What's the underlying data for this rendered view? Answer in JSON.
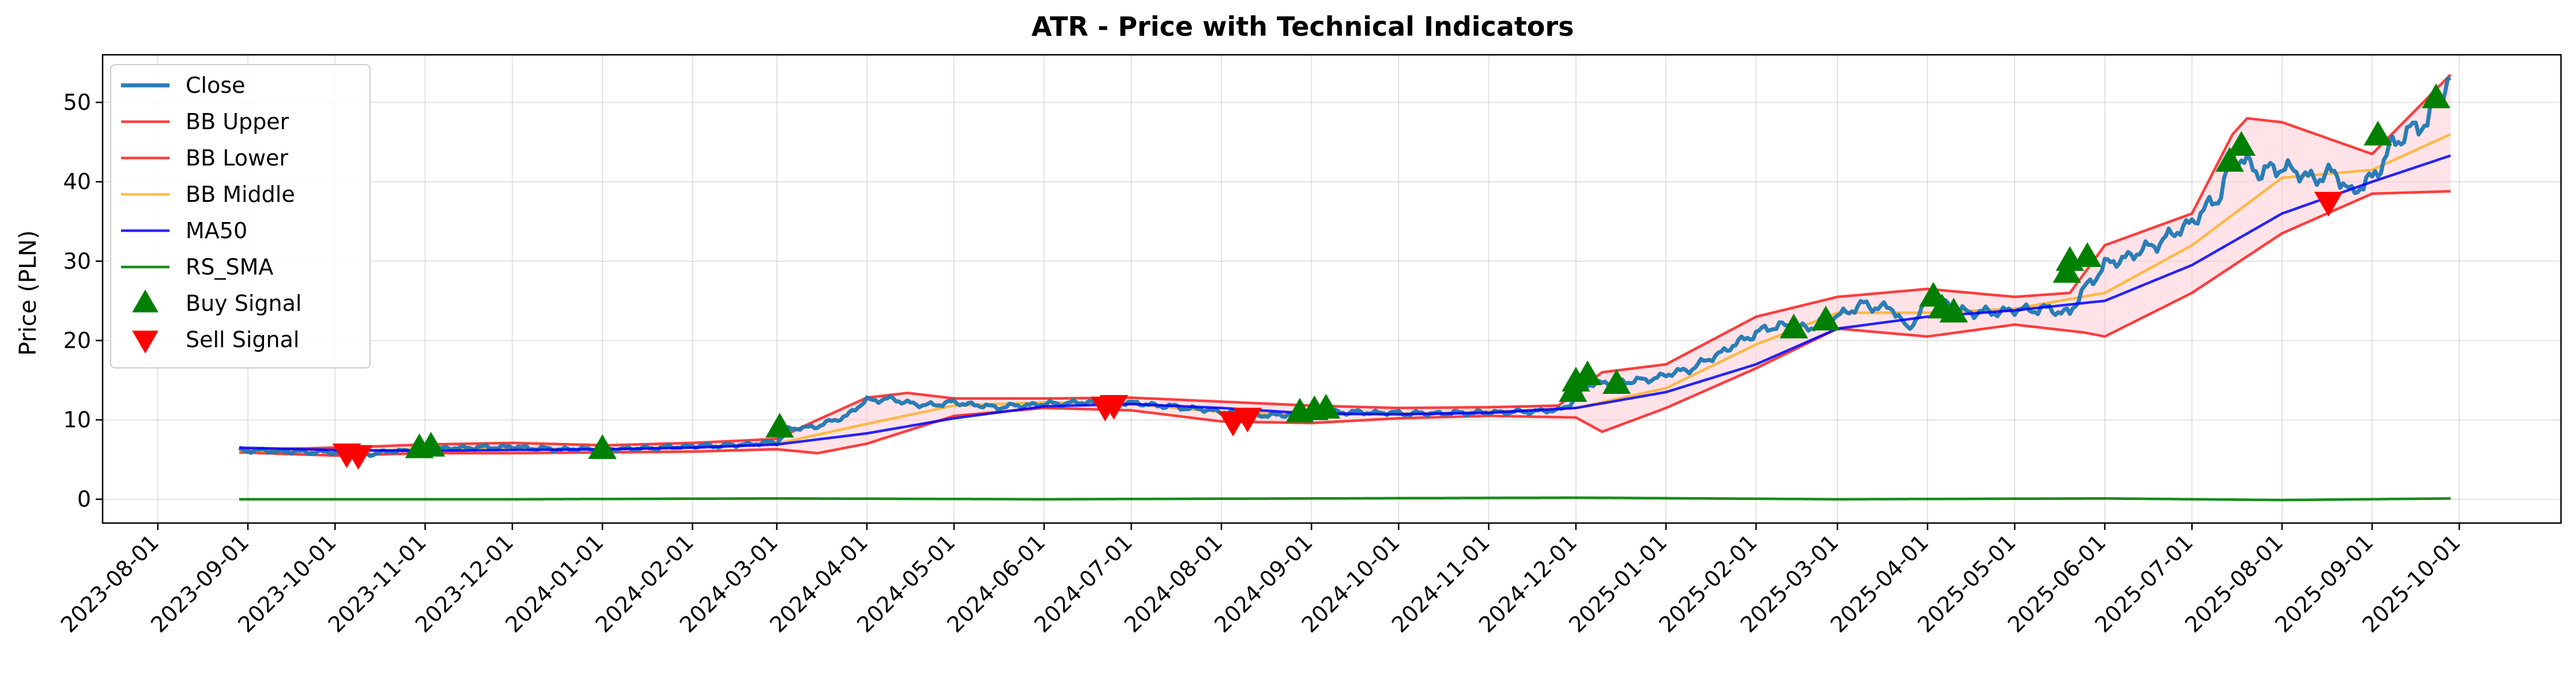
{
  "chart_data": {
    "type": "line",
    "title": "ATR - Price with Technical Indicators",
    "xlabel": "",
    "ylabel": "Price (PLN)",
    "ylim": [
      -3,
      56
    ],
    "xlim": [
      "2023-07-13",
      "2025-11-05"
    ],
    "grid": true,
    "legend_position": "top-left",
    "x_ticks": [
      "2023-08-01",
      "2023-09-01",
      "2023-10-01",
      "2023-11-01",
      "2023-12-01",
      "2024-01-01",
      "2024-02-01",
      "2024-03-01",
      "2024-04-01",
      "2024-05-01",
      "2024-06-01",
      "2024-07-01",
      "2024-08-01",
      "2024-09-01",
      "2024-10-01",
      "2024-11-01",
      "2024-12-01",
      "2025-01-01",
      "2025-02-01",
      "2025-03-01",
      "2025-04-01",
      "2025-05-01",
      "2025-06-01",
      "2025-07-01",
      "2025-08-01",
      "2025-09-01",
      "2025-10-01"
    ],
    "y_ticks": [
      0,
      10,
      20,
      30,
      40,
      50
    ],
    "colors": {
      "Close": "#1f77b4",
      "BB Upper": "#ff0000",
      "BB Lower": "#ff0000",
      "BB Middle": "#ffa500",
      "MA50": "#0000ff",
      "RS_SMA": "#008000",
      "Buy Signal": "#008000",
      "Sell Signal": "#ff0000",
      "band_fill": "#ffc0cb"
    },
    "series": [
      {
        "name": "Close",
        "style": "line",
        "points": [
          [
            "2023-08-29",
            6.2
          ],
          [
            "2023-09-15",
            6.0
          ],
          [
            "2023-10-01",
            5.9
          ],
          [
            "2023-10-10",
            5.6
          ],
          [
            "2023-10-20",
            6.0
          ],
          [
            "2023-11-01",
            6.3
          ],
          [
            "2023-11-15",
            6.5
          ],
          [
            "2023-12-01",
            6.6
          ],
          [
            "2023-12-15",
            6.3
          ],
          [
            "2024-01-02",
            6.3
          ],
          [
            "2024-01-15",
            6.4
          ],
          [
            "2024-02-01",
            6.7
          ],
          [
            "2024-02-15",
            6.8
          ],
          [
            "2024-03-01",
            7.2
          ],
          [
            "2024-03-05",
            8.8
          ],
          [
            "2024-03-15",
            9.2
          ],
          [
            "2024-03-25",
            10.5
          ],
          [
            "2024-04-01",
            12.5
          ],
          [
            "2024-04-10",
            12.6
          ],
          [
            "2024-04-20",
            11.8
          ],
          [
            "2024-05-01",
            12.2
          ],
          [
            "2024-05-15",
            11.6
          ],
          [
            "2024-06-01",
            12.0
          ],
          [
            "2024-06-15",
            12.2
          ],
          [
            "2024-06-26",
            12.3
          ],
          [
            "2024-07-05",
            12.0
          ],
          [
            "2024-07-20",
            11.5
          ],
          [
            "2024-08-05",
            10.9
          ],
          [
            "2024-08-15",
            10.5
          ],
          [
            "2024-08-28",
            10.8
          ],
          [
            "2024-09-10",
            11.0
          ],
          [
            "2024-09-25",
            10.9
          ],
          [
            "2024-10-10",
            10.8
          ],
          [
            "2024-10-25",
            10.9
          ],
          [
            "2024-11-10",
            11.0
          ],
          [
            "2024-11-25",
            11.2
          ],
          [
            "2024-12-01",
            12.5
          ],
          [
            "2024-12-05",
            14.5
          ],
          [
            "2024-12-15",
            14.8
          ],
          [
            "2024-12-25",
            15.0
          ],
          [
            "2025-01-10",
            16.5
          ],
          [
            "2025-01-20",
            18.5
          ],
          [
            "2025-02-01",
            21.0
          ],
          [
            "2025-02-10",
            22.0
          ],
          [
            "2025-02-18",
            21.5
          ],
          [
            "2025-02-28",
            23.0
          ],
          [
            "2025-03-10",
            24.5
          ],
          [
            "2025-03-20",
            24.0
          ],
          [
            "2025-03-25",
            21.5
          ],
          [
            "2025-04-01",
            24.5
          ],
          [
            "2025-04-03",
            25.8
          ],
          [
            "2025-04-10",
            23.8
          ],
          [
            "2025-04-20",
            23.5
          ],
          [
            "2025-05-01",
            23.8
          ],
          [
            "2025-05-10",
            24.0
          ],
          [
            "2025-05-20",
            23.5
          ],
          [
            "2025-05-25",
            26.5
          ],
          [
            "2025-06-01",
            29.5
          ],
          [
            "2025-06-05",
            30.0
          ],
          [
            "2025-06-15",
            31.5
          ],
          [
            "2025-06-25",
            33.5
          ],
          [
            "2025-07-01",
            35.0
          ],
          [
            "2025-07-10",
            38.0
          ],
          [
            "2025-07-15",
            43.0
          ],
          [
            "2025-07-20",
            42.5
          ],
          [
            "2025-07-25",
            41.0
          ],
          [
            "2025-08-01",
            42.0
          ],
          [
            "2025-08-10",
            40.5
          ],
          [
            "2025-08-20",
            41.0
          ],
          [
            "2025-08-25",
            38.5
          ],
          [
            "2025-09-01",
            40.5
          ],
          [
            "2025-09-08",
            44.5
          ],
          [
            "2025-09-15",
            47.0
          ],
          [
            "2025-09-20",
            47.0
          ],
          [
            "2025-09-23",
            50.5
          ],
          [
            "2025-09-28",
            52.5
          ]
        ]
      },
      {
        "name": "BB Upper",
        "style": "line",
        "points": [
          [
            "2023-08-29",
            6.3
          ],
          [
            "2023-09-20",
            6.4
          ],
          [
            "2023-10-10",
            6.6
          ],
          [
            "2023-11-01",
            6.9
          ],
          [
            "2023-12-01",
            7.1
          ],
          [
            "2024-01-02",
            6.8
          ],
          [
            "2024-02-01",
            7.1
          ],
          [
            "2024-03-01",
            7.6
          ],
          [
            "2024-03-15",
            10.0
          ],
          [
            "2024-04-01",
            12.8
          ],
          [
            "2024-04-15",
            13.4
          ],
          [
            "2024-05-01",
            12.7
          ],
          [
            "2024-06-01",
            12.7
          ],
          [
            "2024-07-01",
            12.8
          ],
          [
            "2024-08-01",
            12.3
          ],
          [
            "2024-09-01",
            11.8
          ],
          [
            "2024-10-01",
            11.5
          ],
          [
            "2024-11-01",
            11.6
          ],
          [
            "2024-11-25",
            11.8
          ],
          [
            "2024-12-10",
            16.0
          ],
          [
            "2025-01-01",
            17.0
          ],
          [
            "2025-02-01",
            23.0
          ],
          [
            "2025-03-01",
            25.5
          ],
          [
            "2025-04-01",
            26.5
          ],
          [
            "2025-05-01",
            25.5
          ],
          [
            "2025-05-20",
            26.0
          ],
          [
            "2025-06-01",
            32.0
          ],
          [
            "2025-07-01",
            36.0
          ],
          [
            "2025-07-15",
            46.0
          ],
          [
            "2025-07-20",
            48.0
          ],
          [
            "2025-08-01",
            47.5
          ],
          [
            "2025-09-01",
            43.5
          ],
          [
            "2025-09-28",
            53.5
          ]
        ]
      },
      {
        "name": "BB Middle",
        "style": "line",
        "points": [
          [
            "2023-08-29",
            6.1
          ],
          [
            "2023-10-01",
            6.0
          ],
          [
            "2023-11-01",
            6.3
          ],
          [
            "2023-12-01",
            6.4
          ],
          [
            "2024-01-02",
            6.3
          ],
          [
            "2024-02-01",
            6.6
          ],
          [
            "2024-03-01",
            7.0
          ],
          [
            "2024-04-01",
            9.5
          ],
          [
            "2024-05-01",
            11.8
          ],
          [
            "2024-06-01",
            12.2
          ],
          [
            "2024-07-01",
            12.0
          ],
          [
            "2024-08-01",
            11.0
          ],
          [
            "2024-09-01",
            10.6
          ],
          [
            "2024-10-01",
            10.8
          ],
          [
            "2024-11-01",
            11.0
          ],
          [
            "2024-12-01",
            11.5
          ],
          [
            "2025-01-01",
            14.0
          ],
          [
            "2025-02-01",
            19.5
          ],
          [
            "2025-03-01",
            23.5
          ],
          [
            "2025-04-01",
            23.5
          ],
          [
            "2025-05-01",
            24.0
          ],
          [
            "2025-06-01",
            26.0
          ],
          [
            "2025-07-01",
            32.0
          ],
          [
            "2025-08-01",
            40.5
          ],
          [
            "2025-09-01",
            41.5
          ],
          [
            "2025-09-28",
            46.0
          ]
        ]
      },
      {
        "name": "BB Lower",
        "style": "line",
        "points": [
          [
            "2023-08-29",
            5.9
          ],
          [
            "2023-10-01",
            5.5
          ],
          [
            "2023-11-01",
            5.8
          ],
          [
            "2023-12-01",
            5.8
          ],
          [
            "2024-01-02",
            5.9
          ],
          [
            "2024-02-01",
            6.0
          ],
          [
            "2024-03-01",
            6.3
          ],
          [
            "2024-03-15",
            5.8
          ],
          [
            "2024-04-01",
            7.0
          ],
          [
            "2024-05-01",
            10.5
          ],
          [
            "2024-06-01",
            11.5
          ],
          [
            "2024-07-01",
            11.2
          ],
          [
            "2024-08-01",
            9.8
          ],
          [
            "2024-09-01",
            9.6
          ],
          [
            "2024-10-01",
            10.2
          ],
          [
            "2024-11-01",
            10.5
          ],
          [
            "2024-12-01",
            10.3
          ],
          [
            "2024-12-10",
            8.5
          ],
          [
            "2025-01-01",
            11.5
          ],
          [
            "2025-02-01",
            16.5
          ],
          [
            "2025-03-01",
            21.5
          ],
          [
            "2025-04-01",
            20.5
          ],
          [
            "2025-05-01",
            22.0
          ],
          [
            "2025-05-25",
            21.0
          ],
          [
            "2025-06-01",
            20.5
          ],
          [
            "2025-07-01",
            26.0
          ],
          [
            "2025-08-01",
            33.5
          ],
          [
            "2025-09-01",
            38.5
          ],
          [
            "2025-09-28",
            38.8
          ]
        ]
      },
      {
        "name": "MA50",
        "style": "line",
        "points": [
          [
            "2023-08-29",
            6.5
          ],
          [
            "2023-10-01",
            6.2
          ],
          [
            "2023-11-01",
            6.1
          ],
          [
            "2023-12-01",
            6.2
          ],
          [
            "2024-01-02",
            6.3
          ],
          [
            "2024-02-01",
            6.5
          ],
          [
            "2024-03-01",
            6.9
          ],
          [
            "2024-04-01",
            8.3
          ],
          [
            "2024-05-01",
            10.2
          ],
          [
            "2024-06-01",
            11.7
          ],
          [
            "2024-07-01",
            12.0
          ],
          [
            "2024-08-01",
            11.5
          ],
          [
            "2024-09-01",
            10.8
          ],
          [
            "2024-10-01",
            10.7
          ],
          [
            "2024-11-01",
            10.9
          ],
          [
            "2024-12-01",
            11.5
          ],
          [
            "2025-01-01",
            13.5
          ],
          [
            "2025-02-01",
            17.0
          ],
          [
            "2025-03-01",
            21.5
          ],
          [
            "2025-04-01",
            23.0
          ],
          [
            "2025-05-01",
            23.8
          ],
          [
            "2025-06-01",
            25.0
          ],
          [
            "2025-07-01",
            29.5
          ],
          [
            "2025-08-01",
            36.0
          ],
          [
            "2025-09-01",
            40.0
          ],
          [
            "2025-09-28",
            43.3
          ]
        ]
      },
      {
        "name": "RS_SMA",
        "style": "line",
        "points": [
          [
            "2023-08-29",
            0.0
          ],
          [
            "2023-12-01",
            0.0
          ],
          [
            "2024-03-01",
            0.1
          ],
          [
            "2024-06-01",
            0.0
          ],
          [
            "2024-09-01",
            0.1
          ],
          [
            "2024-12-01",
            0.2
          ],
          [
            "2025-03-01",
            0.0
          ],
          [
            "2025-06-01",
            0.1
          ],
          [
            "2025-08-01",
            -0.1
          ],
          [
            "2025-09-28",
            0.1
          ]
        ]
      },
      {
        "name": "Buy Signal",
        "style": "markers",
        "points": [
          [
            "2023-10-30",
            6.4
          ],
          [
            "2023-11-03",
            6.6
          ],
          [
            "2024-01-01",
            6.3
          ],
          [
            "2024-03-02",
            9.0
          ],
          [
            "2024-08-28",
            10.9
          ],
          [
            "2024-09-02",
            11.2
          ],
          [
            "2024-09-06",
            11.4
          ],
          [
            "2024-11-30",
            13.5
          ],
          [
            "2024-12-01",
            14.8
          ],
          [
            "2024-12-05",
            15.6
          ],
          [
            "2024-12-15",
            14.5
          ],
          [
            "2025-02-14",
            21.5
          ],
          [
            "2025-02-25",
            22.5
          ],
          [
            "2025-04-03",
            25.5
          ],
          [
            "2025-04-06",
            24.0
          ],
          [
            "2025-04-10",
            23.5
          ],
          [
            "2025-05-19",
            28.5
          ],
          [
            "2025-05-20",
            30.0
          ],
          [
            "2025-05-26",
            30.5
          ],
          [
            "2025-07-14",
            42.5
          ],
          [
            "2025-07-18",
            44.5
          ],
          [
            "2025-09-03",
            45.8
          ],
          [
            "2025-09-23",
            50.5
          ]
        ]
      },
      {
        "name": "Sell Signal",
        "style": "markers",
        "points": [
          [
            "2023-10-05",
            5.8
          ],
          [
            "2023-10-09",
            5.6
          ],
          [
            "2024-06-22",
            11.7
          ],
          [
            "2024-06-25",
            11.9
          ],
          [
            "2024-08-05",
            9.8
          ],
          [
            "2024-08-10",
            10.3
          ],
          [
            "2025-08-17",
            37.5
          ]
        ]
      }
    ]
  }
}
